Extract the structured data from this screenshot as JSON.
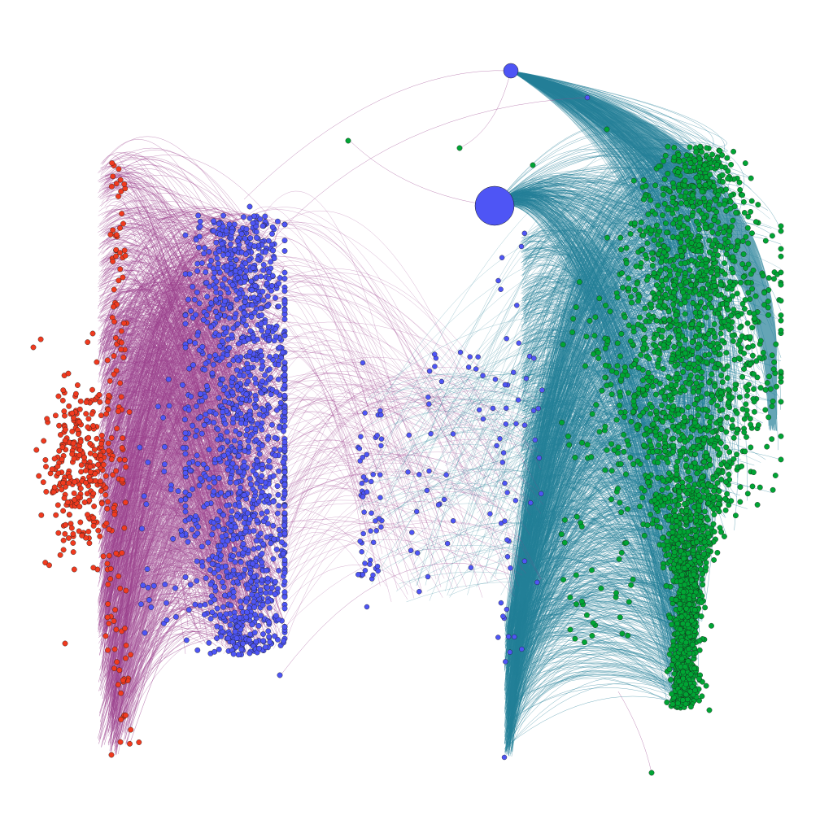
{
  "diagram": {
    "type": "network-graph",
    "layout": "bipartite-force",
    "colors": {
      "red_nodes": "#f03a1f",
      "blue_nodes": "#4e55f5",
      "green_nodes": "#00a534",
      "purple_edges": "#9a3f8c",
      "teal_edges": "#237f97",
      "node_stroke": "#1b1b1b"
    },
    "clusters": [
      {
        "name": "red",
        "node_count": 420
      },
      {
        "name": "blue-left",
        "node_count": 1400
      },
      {
        "name": "blue-middle",
        "node_count": 110
      },
      {
        "name": "green",
        "node_count": 2600
      }
    ],
    "edge_bundles": [
      {
        "name": "purple-arcs",
        "edge_count": 900
      },
      {
        "name": "teal-arcs",
        "edge_count": 1400
      }
    ],
    "hub_nodes": [
      {
        "name": "large-blue-hub"
      },
      {
        "name": "top-blue-hub"
      }
    ]
  }
}
